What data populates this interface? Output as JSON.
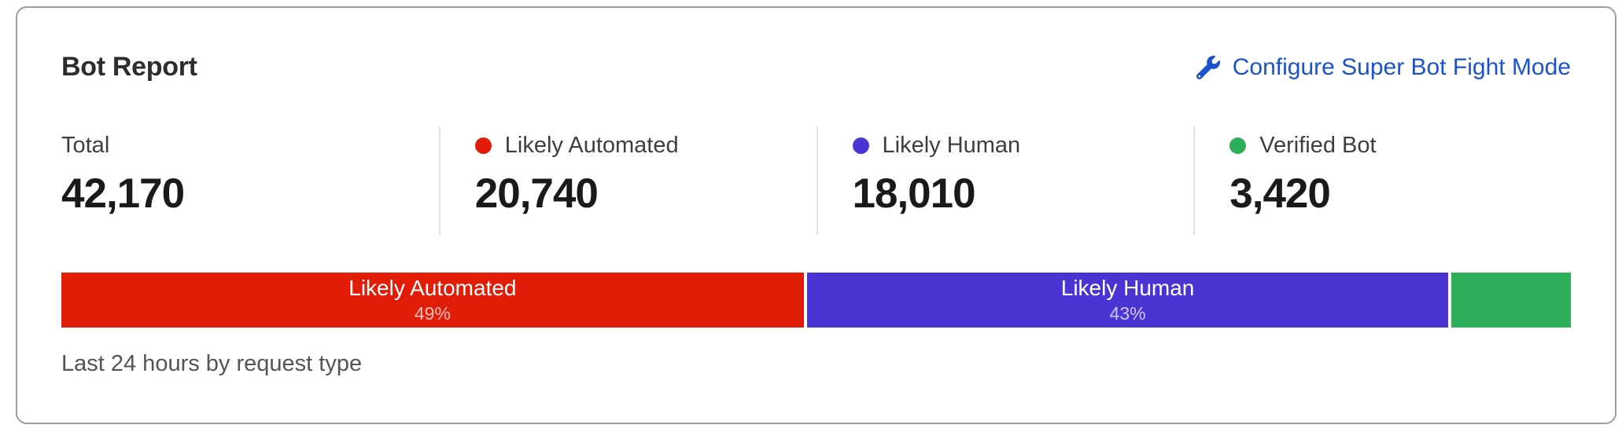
{
  "card": {
    "title": "Bot Report",
    "configure_link": {
      "label": "Configure Super Bot Fight Mode",
      "icon": "wrench-icon",
      "color": "#1b53cc"
    },
    "stats": [
      {
        "label": "Total",
        "value": "42,170",
        "dot_color": null
      },
      {
        "label": "Likely Automated",
        "value": "20,740",
        "dot_color": "#e11d07"
      },
      {
        "label": "Likely Human",
        "value": "18,010",
        "dot_color": "#4a35d4"
      },
      {
        "label": "Verified Bot",
        "value": "3,420",
        "dot_color": "#2dae58"
      }
    ],
    "caption": "Last 24 hours by request type"
  },
  "colors": {
    "likely_automated_red": "#e11d07",
    "likely_human_indigo": "#4a35d4",
    "verified_bot_green": "#2dae58",
    "link_blue": "#1b53cc",
    "card_border": "#9e9e9e",
    "divider": "#e2e2e2"
  },
  "chart_data": {
    "type": "bar",
    "variant": "horizontal-stacked-percentage",
    "title": "Bot Report",
    "caption": "Last 24 hours by request type",
    "total": 42170,
    "segments": [
      {
        "name": "Likely Automated",
        "value": 20740,
        "percent_label": "49%",
        "color": "#e11d07",
        "label_visible": true
      },
      {
        "name": "Likely Human",
        "value": 18010,
        "percent_label": "43%",
        "color": "#4a35d4",
        "label_visible": true
      },
      {
        "name": "Verified Bot",
        "value": 3420,
        "percent_label": null,
        "color": "#2dae58",
        "label_visible": false
      }
    ]
  }
}
